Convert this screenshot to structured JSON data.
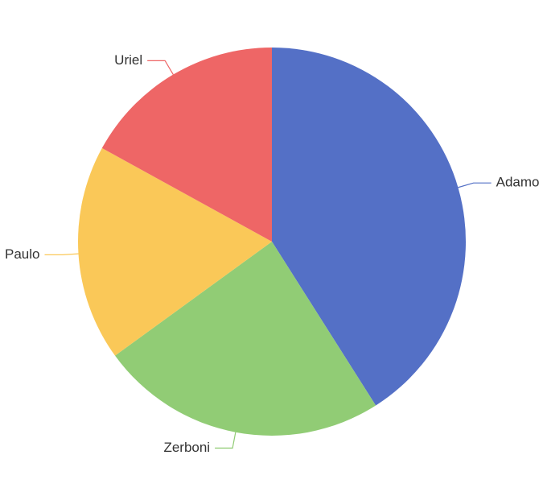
{
  "chart_data": {
    "type": "pie",
    "categories": [
      "Adamo",
      "Zerboni",
      "Paulo",
      "Uriel"
    ],
    "values": [
      41,
      24,
      18,
      17
    ],
    "colors": [
      "#5470c6",
      "#91cc75",
      "#fac858",
      "#ee6666"
    ]
  }
}
